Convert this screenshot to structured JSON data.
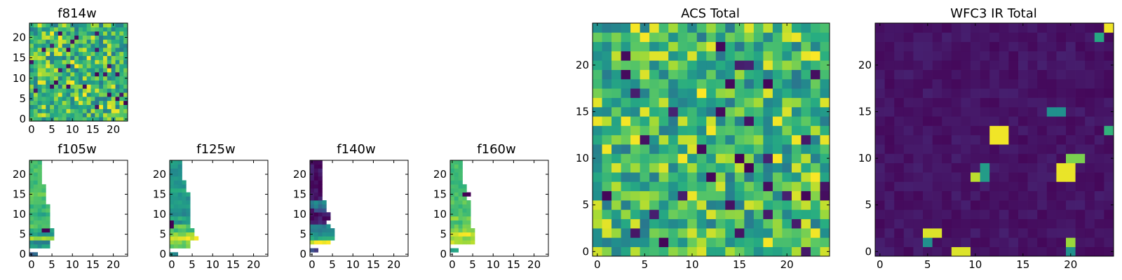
{
  "figure": {
    "colormap": "viridis",
    "background": "#ffffff"
  },
  "chart_data": [
    {
      "type": "heatmap",
      "key": "f814w",
      "title": "f814w",
      "grid": [
        24,
        24
      ],
      "fill": "random-high",
      "xticks": [
        0,
        5,
        10,
        15,
        20
      ],
      "yticks": [
        0,
        5,
        10,
        15,
        20
      ],
      "xlim": [
        0,
        24
      ],
      "ylim": [
        0,
        24
      ]
    },
    {
      "type": "heatmap",
      "key": "f105w",
      "title": "f105w",
      "grid": [
        24,
        24
      ],
      "fill": "partial",
      "xticks": [
        0,
        5,
        10,
        15,
        20
      ],
      "yticks": [
        0,
        5,
        10,
        15,
        20
      ],
      "xlim": [
        0,
        24
      ],
      "ylim": [
        0,
        24
      ],
      "masked_region": "cells with x > 5 empty",
      "rows": [
        [
          0,
          1,
          0.35
        ],
        [
          2,
          4,
          0.55
        ],
        [
          3,
          4,
          0.45
        ],
        [
          4,
          5,
          0.85
        ],
        [
          5,
          5,
          0.55
        ],
        [
          6,
          5,
          0.62
        ],
        [
          7,
          4,
          0.72
        ],
        [
          8,
          4,
          0.66
        ],
        [
          9,
          4,
          0.68
        ],
        [
          10,
          4,
          0.6
        ],
        [
          11,
          4,
          0.7
        ],
        [
          12,
          4,
          0.65
        ],
        [
          13,
          3,
          0.75
        ],
        [
          14,
          3,
          0.72
        ],
        [
          15,
          3,
          0.74
        ],
        [
          16,
          3,
          0.7
        ],
        [
          17,
          3,
          0.73
        ],
        [
          18,
          2,
          0.68
        ],
        [
          19,
          2,
          0.7
        ],
        [
          20,
          2,
          0.71
        ],
        [
          21,
          2,
          0.7
        ],
        [
          22,
          2,
          0.7
        ],
        [
          23,
          2,
          0.72
        ]
      ],
      "features": [
        {
          "x": 3,
          "y": 6,
          "w": 2,
          "h": 1,
          "v": 0.0
        }
      ]
    },
    {
      "type": "heatmap",
      "key": "f125w",
      "title": "f125w",
      "grid": [
        24,
        24
      ],
      "fill": "partial",
      "xticks": [
        0,
        5,
        10,
        15,
        20
      ],
      "yticks": [
        0,
        5,
        10,
        15,
        20
      ],
      "xlim": [
        0,
        24
      ],
      "ylim": [
        0,
        24
      ],
      "masked_region": "cells with x > 6 empty",
      "rows": [
        [
          0,
          1,
          0.45
        ],
        [
          2,
          4,
          0.75
        ],
        [
          3,
          4,
          0.8
        ],
        [
          4,
          6,
          0.95
        ],
        [
          5,
          5,
          0.82
        ],
        [
          6,
          5,
          0.7
        ],
        [
          7,
          4,
          0.75
        ],
        [
          8,
          4,
          0.5
        ],
        [
          9,
          4,
          0.6
        ],
        [
          10,
          4,
          0.45
        ],
        [
          11,
          4,
          0.5
        ],
        [
          12,
          4,
          0.55
        ],
        [
          13,
          4,
          0.55
        ],
        [
          14,
          4,
          0.5
        ],
        [
          15,
          4,
          0.55
        ],
        [
          16,
          3,
          0.6
        ],
        [
          17,
          3,
          0.5
        ],
        [
          18,
          3,
          0.55
        ],
        [
          19,
          2,
          0.5
        ],
        [
          20,
          2,
          0.5
        ],
        [
          21,
          2,
          0.5
        ],
        [
          22,
          2,
          0.5
        ],
        [
          23,
          2,
          0.55
        ]
      ],
      "features": [
        {
          "x": 0,
          "y": 7,
          "w": 1,
          "h": 2,
          "v": 0.0
        }
      ]
    },
    {
      "type": "heatmap",
      "key": "f140w",
      "title": "f140w",
      "grid": [
        24,
        24
      ],
      "fill": "partial",
      "xticks": [
        0,
        5,
        10,
        15,
        20
      ],
      "yticks": [
        0,
        5,
        10,
        15,
        20
      ],
      "xlim": [
        0,
        24
      ],
      "ylim": [
        0,
        24
      ],
      "masked_region": "cells with x > 5 empty",
      "rows": [
        [
          1,
          1,
          0.2
        ],
        [
          3,
          4,
          0.95
        ],
        [
          4,
          5,
          0.6
        ],
        [
          5,
          5,
          0.5
        ],
        [
          6,
          5,
          0.45
        ],
        [
          7,
          4,
          0.45
        ],
        [
          8,
          3,
          0.1
        ],
        [
          9,
          4,
          0.05
        ],
        [
          10,
          4,
          0.05
        ],
        [
          11,
          3,
          0.3
        ],
        [
          12,
          3,
          0.4
        ],
        [
          13,
          3,
          0.45
        ],
        [
          14,
          2,
          0.05
        ],
        [
          15,
          2,
          0.05
        ],
        [
          16,
          2,
          0.05
        ],
        [
          17,
          2,
          0.05
        ],
        [
          18,
          2,
          0.05
        ],
        [
          19,
          2,
          0.05
        ],
        [
          20,
          2,
          0.05
        ],
        [
          21,
          2,
          0.05
        ],
        [
          22,
          2,
          0.05
        ],
        [
          23,
          2,
          0.05
        ]
      ],
      "features": [
        {
          "x": 0,
          "y": 11,
          "w": 1,
          "h": 1,
          "v": 0.05
        }
      ]
    },
    {
      "type": "heatmap",
      "key": "f160w",
      "title": "f160w",
      "grid": [
        24,
        24
      ],
      "fill": "partial",
      "xticks": [
        0,
        5,
        10,
        15,
        20
      ],
      "yticks": [
        0,
        5,
        10,
        15,
        20
      ],
      "xlim": [
        0,
        24
      ],
      "ylim": [
        0,
        24
      ],
      "masked_region": "cells with x > 6 empty",
      "rows": [
        [
          1,
          1,
          0.6
        ],
        [
          3,
          5,
          0.9
        ],
        [
          4,
          5,
          0.85
        ],
        [
          5,
          5,
          0.95
        ],
        [
          6,
          5,
          0.8
        ],
        [
          7,
          4,
          0.75
        ],
        [
          8,
          4,
          0.7
        ],
        [
          9,
          4,
          0.8
        ],
        [
          10,
          4,
          0.72
        ],
        [
          11,
          4,
          0.7
        ],
        [
          12,
          4,
          0.68
        ],
        [
          13,
          4,
          0.75
        ],
        [
          14,
          3,
          0.7
        ],
        [
          15,
          3,
          0.72
        ],
        [
          16,
          3,
          0.7
        ],
        [
          17,
          3,
          0.7
        ],
        [
          18,
          2,
          0.68
        ],
        [
          19,
          2,
          0.7
        ],
        [
          20,
          2,
          0.7
        ],
        [
          21,
          2,
          0.7
        ],
        [
          22,
          2,
          0.7
        ],
        [
          23,
          2,
          0.7
        ]
      ],
      "features": [
        {
          "x": 3,
          "y": 15,
          "w": 2,
          "h": 1,
          "v": 0.0
        }
      ]
    },
    {
      "type": "heatmap",
      "key": "acs_total",
      "title": "ACS Total",
      "grid": [
        25,
        25
      ],
      "fill": "random-high",
      "xticks": [
        0,
        5,
        10,
        15,
        20
      ],
      "yticks": [
        0,
        5,
        10,
        15,
        20
      ],
      "xlim": [
        0,
        25
      ],
      "ylim": [
        0,
        25
      ]
    },
    {
      "type": "heatmap",
      "key": "wfc3_ir_total",
      "title": "WFC3 IR Total",
      "grid": [
        25,
        25
      ],
      "fill": "random-low",
      "xticks": [
        0,
        5,
        10,
        15,
        20
      ],
      "yticks": [
        0,
        5,
        10,
        15,
        20
      ],
      "xlim": [
        0,
        25
      ],
      "ylim": [
        0,
        25
      ],
      "features": [
        {
          "x": 12,
          "y": 12,
          "w": 2,
          "h": 2,
          "v": 0.98
        },
        {
          "x": 10,
          "y": 8,
          "w": 1,
          "h": 1,
          "v": 0.9
        },
        {
          "x": 11,
          "y": 8,
          "w": 1,
          "h": 2,
          "v": 0.55
        },
        {
          "x": 19,
          "y": 8,
          "w": 2,
          "h": 2,
          "v": 0.97
        },
        {
          "x": 20,
          "y": 10,
          "w": 2,
          "h": 1,
          "v": 0.8
        },
        {
          "x": 18,
          "y": 15,
          "w": 2,
          "h": 1,
          "v": 0.5
        },
        {
          "x": 5,
          "y": 1,
          "w": 1,
          "h": 1,
          "v": 0.5
        },
        {
          "x": 5,
          "y": 2,
          "w": 2,
          "h": 1,
          "v": 0.95
        },
        {
          "x": 8,
          "y": 0,
          "w": 2,
          "h": 1,
          "v": 0.95
        },
        {
          "x": 20,
          "y": 0,
          "w": 1,
          "h": 1,
          "v": 0.5
        },
        {
          "x": 20,
          "y": 1,
          "w": 1,
          "h": 1,
          "v": 0.85
        },
        {
          "x": 24,
          "y": 24,
          "w": 1,
          "h": 1,
          "v": 0.98
        },
        {
          "x": 23,
          "y": 23,
          "w": 1,
          "h": 1,
          "v": 0.6
        },
        {
          "x": 24,
          "y": 13,
          "w": 1,
          "h": 1,
          "v": 0.65
        }
      ]
    }
  ]
}
